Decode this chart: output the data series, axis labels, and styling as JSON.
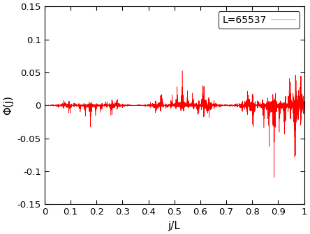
{
  "L": 65537,
  "xlabel": "j/L",
  "ylabel": "Φ(j)",
  "xlim": [
    0,
    1
  ],
  "ylim": [
    -0.15,
    0.15
  ],
  "xticks": [
    0,
    0.1,
    0.2,
    0.3,
    0.4,
    0.5,
    0.6,
    0.7,
    0.8,
    0.9,
    1.0
  ],
  "xticklabels": [
    "0",
    "0.1",
    "0.2",
    "0.3",
    "0.4",
    "0.5",
    "0.6",
    "0.7",
    "0.8",
    "0.9",
    "1"
  ],
  "yticks": [
    -0.15,
    -0.1,
    -0.05,
    0,
    0.05,
    0.1,
    0.15
  ],
  "yticklabels": [
    "-0.15",
    "-0.1",
    "-0.05",
    "0",
    "0.05",
    "0.1",
    "0.15"
  ],
  "line_color": "#ff0000",
  "legend_label": "L=65537",
  "line_width": 0.4,
  "background_color": "#ffffff",
  "U": 2.0,
  "golden_ratio": 0.6180339887498949,
  "figsize": [
    4.44,
    3.36
  ],
  "dpi": 100
}
